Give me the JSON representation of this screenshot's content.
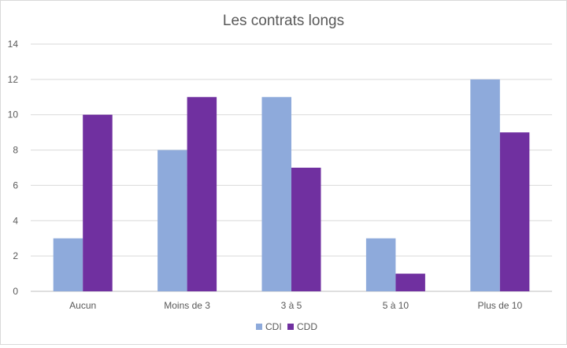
{
  "chart_data": {
    "type": "bar",
    "title": "Les contrats longs",
    "xlabel": "",
    "ylabel": "",
    "categories": [
      "Aucun",
      "Moins de 3",
      "3 à 5",
      "5 à 10",
      "Plus de 10"
    ],
    "series": [
      {
        "name": "CDI",
        "values": [
          3,
          8,
          11,
          3,
          12
        ],
        "color": "#8eaadb"
      },
      {
        "name": "CDD",
        "values": [
          10,
          11,
          7,
          1,
          9
        ],
        "color": "#7030a0"
      }
    ],
    "ylim": [
      0,
      14
    ],
    "yticks": [
      0,
      2,
      4,
      6,
      8,
      10,
      12,
      14
    ],
    "grid": true,
    "legend": "bottom"
  }
}
